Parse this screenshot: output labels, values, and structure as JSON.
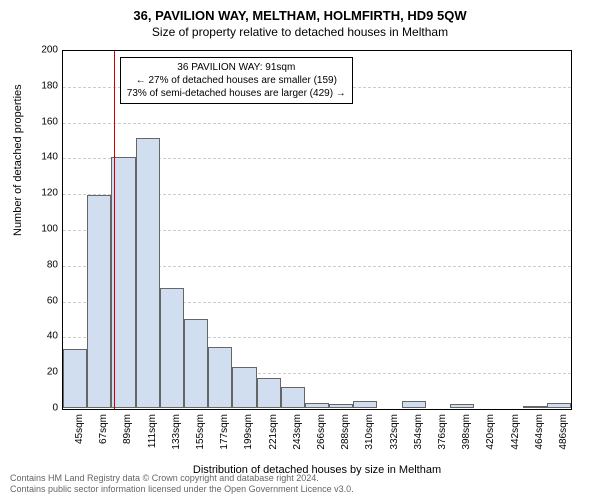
{
  "title": "36, PAVILION WAY, MELTHAM, HOLMFIRTH, HD9 5QW",
  "subtitle": "Size of property relative to detached houses in Meltham",
  "ylabel": "Number of detached properties",
  "xlabel": "Distribution of detached houses by size in Meltham",
  "chart": {
    "type": "histogram",
    "ylim": [
      0,
      200
    ],
    "ytick_step": 20,
    "x_categories": [
      "45sqm",
      "67sqm",
      "89sqm",
      "111sqm",
      "133sqm",
      "155sqm",
      "177sqm",
      "199sqm",
      "221sqm",
      "243sqm",
      "266sqm",
      "288sqm",
      "310sqm",
      "332sqm",
      "354sqm",
      "376sqm",
      "398sqm",
      "420sqm",
      "442sqm",
      "464sqm",
      "486sqm"
    ],
    "values": [
      33,
      119,
      140,
      151,
      67,
      50,
      34,
      23,
      17,
      12,
      3,
      2,
      4,
      0,
      4,
      0,
      2,
      0,
      0,
      1,
      3
    ],
    "bar_fill": "#d1deef",
    "bar_border": "#666666",
    "grid_color": "#cccccc",
    "background_color": "#ffffff",
    "marker": {
      "position_index": 2.1,
      "color": "#cc0000"
    },
    "info_box": {
      "line1": "36 PAVILION WAY: 91sqm",
      "line2": "← 27% of detached houses are smaller (159)",
      "line3": "73% of semi-detached houses are larger (429) →"
    }
  },
  "footer": {
    "line1": "Contains HM Land Registry data © Crown copyright and database right 2024.",
    "line2": "Contains public sector information licensed under the Open Government Licence v3.0."
  }
}
